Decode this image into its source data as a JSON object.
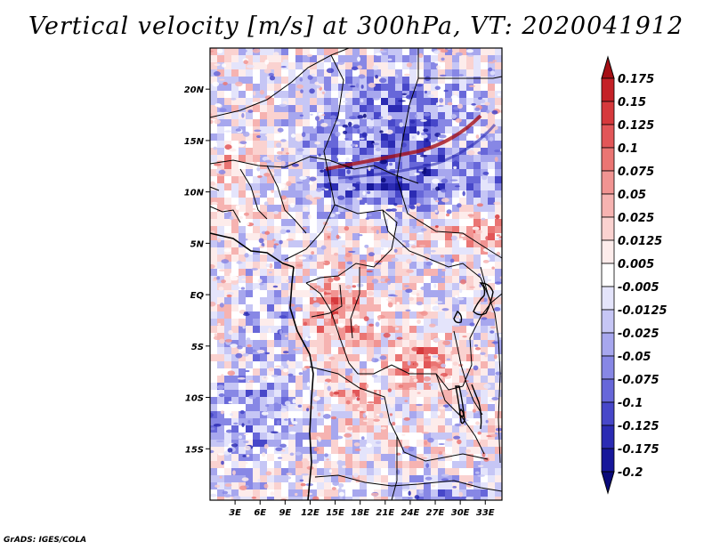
{
  "title": "Vertical velocity [m/s] at 300hPa, VT: 2020041912",
  "credit": "GrADS: IGES/COLA",
  "map": {
    "lat_labels": [
      "20N",
      "15N",
      "10N",
      "5N",
      "EQ",
      "5S",
      "10S",
      "15S"
    ],
    "lon_labels": [
      "3E",
      "6E",
      "9E",
      "12E",
      "15E",
      "18E",
      "21E",
      "24E",
      "27E",
      "30E",
      "33E"
    ],
    "lon_range": [
      0,
      35
    ],
    "lat_range": [
      -20,
      24
    ]
  },
  "colorbar": {
    "labels": [
      "0.175",
      "0.15",
      "0.125",
      "0.1",
      "0.075",
      "0.05",
      "0.025",
      "0.0125",
      "0.005",
      "-0.005",
      "-0.0125",
      "-0.025",
      "-0.05",
      "-0.075",
      "-0.1",
      "-0.125",
      "-0.175",
      "-0.2"
    ],
    "colors": [
      "#a50f15",
      "#c42127",
      "#d6393c",
      "#e25658",
      "#ea7573",
      "#f19492",
      "#f6b3b1",
      "#fad2d0",
      "#fdeceb",
      "#ffffff",
      "#e4e4fb",
      "#c6c6f5",
      "#a7a7ee",
      "#8787e5",
      "#6767d9",
      "#4747c9",
      "#2b2bb3",
      "#17179a",
      "#0a0a7a"
    ]
  },
  "colors": {
    "positive": "#d84a4a",
    "negative": "#5b5bd6",
    "neutral": "#f4f0f5",
    "coast": "#000000"
  }
}
